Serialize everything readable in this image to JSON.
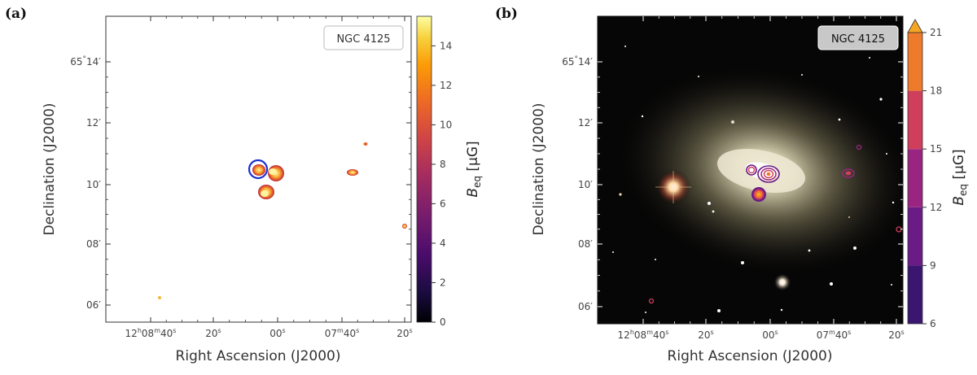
{
  "chart_data": [
    {
      "panel": "(a)",
      "type": "heatmap",
      "label": "NGC 4125",
      "xlabel": "Right Ascension (J2000)",
      "ylabel": "Declination (J2000)",
      "x_ticks": [
        {
          "h": "12",
          "m": "08",
          "s": "40"
        },
        {
          "s": "20"
        },
        {
          "s": "00"
        },
        {
          "m": "07",
          "s": "40"
        },
        {
          "s": "20"
        }
      ],
      "y_ticks": [
        {
          "d": "65",
          "m": "14"
        },
        {
          "m": "12"
        },
        {
          "m": "10"
        },
        {
          "m": "08"
        },
        {
          "m": "06"
        }
      ],
      "colorbar": {
        "label": "B",
        "label_sub": "eq",
        "label_unit": " [μG]",
        "min": 0,
        "max": 15.5,
        "ticks": [
          "0",
          "2",
          "4",
          "6",
          "8",
          "10",
          "12",
          "14"
        ],
        "colormap": "inferno"
      },
      "sources": [
        {
          "ra_s": 6,
          "dec_m": 10.4,
          "value": 12,
          "marker": "circle"
        },
        {
          "ra_s": 2,
          "dec_m": 10.3,
          "value": 13
        },
        {
          "ra_s": 4,
          "dec_m": 9.8,
          "value": 13
        },
        {
          "ra_s": -45,
          "dec_m": 10.4,
          "value": 10
        },
        {
          "ra_s": -42,
          "dec_m": 11.3,
          "value": 11
        },
        {
          "ra_s": -80,
          "dec_m": 8.6,
          "value": 13
        },
        {
          "ra_s": 30,
          "dec_m": 6.3,
          "value": 12
        }
      ]
    },
    {
      "panel": "(b)",
      "type": "heatmap",
      "label": "NGC 4125",
      "xlabel": "Right Ascension (J2000)",
      "ylabel": "Declination (J2000)",
      "x_ticks": [
        {
          "h": "12",
          "m": "08",
          "s": "40"
        },
        {
          "s": "20"
        },
        {
          "s": "00"
        },
        {
          "m": "07",
          "s": "40"
        },
        {
          "s": "20"
        }
      ],
      "y_ticks": [
        {
          "d": "65",
          "m": "14"
        },
        {
          "m": "12"
        },
        {
          "m": "10"
        },
        {
          "m": "08"
        },
        {
          "m": "06"
        }
      ],
      "colorbar": {
        "label": "B",
        "label_sub": "eq",
        "label_unit": " [μG]",
        "min": 6,
        "max": 21,
        "ticks": [
          "6",
          "9",
          "12",
          "15",
          "18",
          "21"
        ],
        "extend": "max",
        "levels": [
          {
            "from": 6,
            "to": 9,
            "color": "#3a1670"
          },
          {
            "from": 9,
            "to": 12,
            "color": "#6a1b86"
          },
          {
            "from": 12,
            "to": 15,
            "color": "#9a2580"
          },
          {
            "from": 15,
            "to": 18,
            "color": "#cf3e5b"
          },
          {
            "from": 18,
            "to": 21,
            "color": "#ee7b2c"
          }
        ],
        "extend_color": "#f6a623"
      }
    }
  ]
}
